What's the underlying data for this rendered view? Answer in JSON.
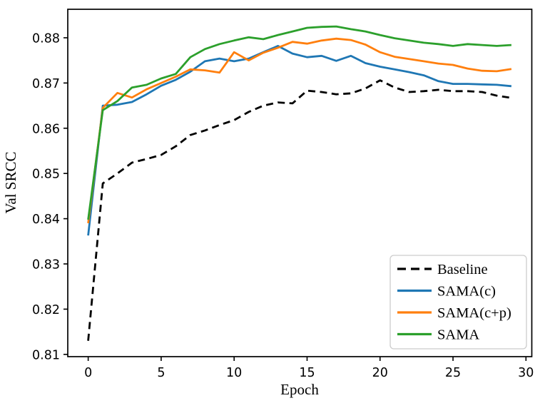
{
  "figure": {
    "background": "#ffffff",
    "border_color": "#000000"
  },
  "chart_data": {
    "type": "line",
    "title": "",
    "xlabel": "Epoch",
    "ylabel": "Val SRCC",
    "xlim": [
      -1.4,
      30.4
    ],
    "ylim": [
      0.8095,
      0.8863
    ],
    "xticks": [
      0,
      5,
      10,
      15,
      20,
      25,
      30
    ],
    "xtick_labels": [
      "0",
      "5",
      "10",
      "15",
      "20",
      "25",
      "30"
    ],
    "yticks": [
      0.81,
      0.82,
      0.83,
      0.84,
      0.85,
      0.86,
      0.87,
      0.88
    ],
    "ytick_labels": [
      "0.81",
      "0.82",
      "0.83",
      "0.84",
      "0.85",
      "0.86",
      "0.87",
      "0.88"
    ],
    "grid": false,
    "x": [
      0,
      1,
      2,
      3,
      4,
      5,
      6,
      7,
      8,
      9,
      10,
      11,
      12,
      13,
      14,
      15,
      16,
      17,
      18,
      19,
      20,
      21,
      22,
      23,
      24,
      25,
      26,
      27,
      28,
      29
    ],
    "series": [
      {
        "name": "Baseline",
        "color": "#000000",
        "dashed": true,
        "values": [
          0.813,
          0.8478,
          0.85,
          0.8524,
          0.8532,
          0.8541,
          0.856,
          0.8585,
          0.8595,
          0.8607,
          0.8618,
          0.8636,
          0.865,
          0.8657,
          0.8655,
          0.8683,
          0.868,
          0.8675,
          0.8677,
          0.8688,
          0.8706,
          0.869,
          0.868,
          0.8682,
          0.8685,
          0.8682,
          0.8682,
          0.868,
          0.8672,
          0.8667
        ]
      },
      {
        "name": "SAMA(c)",
        "color": "#1f77b4",
        "dashed": false,
        "values": [
          0.8363,
          0.865,
          0.8652,
          0.8658,
          0.8675,
          0.8694,
          0.8707,
          0.8725,
          0.8748,
          0.8754,
          0.8748,
          0.8754,
          0.8768,
          0.8782,
          0.8765,
          0.8757,
          0.876,
          0.8749,
          0.876,
          0.8744,
          0.8736,
          0.873,
          0.8724,
          0.8717,
          0.8704,
          0.8698,
          0.8698,
          0.8697,
          0.8696,
          0.8693
        ]
      },
      {
        "name": "SAMA(c+p)",
        "color": "#ff7f0e",
        "dashed": false,
        "values": [
          0.839,
          0.8645,
          0.8678,
          0.8668,
          0.8686,
          0.87,
          0.8714,
          0.873,
          0.8728,
          0.8723,
          0.8768,
          0.875,
          0.8767,
          0.8778,
          0.8791,
          0.8787,
          0.8794,
          0.8798,
          0.8795,
          0.8785,
          0.8768,
          0.8758,
          0.8753,
          0.8748,
          0.8743,
          0.874,
          0.8732,
          0.8727,
          0.8726,
          0.8731
        ]
      },
      {
        "name": "SAMA",
        "color": "#2ca02c",
        "dashed": false,
        "values": [
          0.8398,
          0.864,
          0.866,
          0.869,
          0.8696,
          0.871,
          0.872,
          0.8757,
          0.8775,
          0.8786,
          0.8794,
          0.8801,
          0.8797,
          0.8806,
          0.8814,
          0.8822,
          0.8824,
          0.8825,
          0.8819,
          0.8814,
          0.8806,
          0.8799,
          0.8794,
          0.8789,
          0.8786,
          0.8782,
          0.8786,
          0.8784,
          0.8782,
          0.8784
        ]
      }
    ],
    "legend": {
      "position": "lower right",
      "entries": [
        "Baseline",
        "SAMA(c)",
        "SAMA(c+p)",
        "SAMA"
      ]
    }
  }
}
